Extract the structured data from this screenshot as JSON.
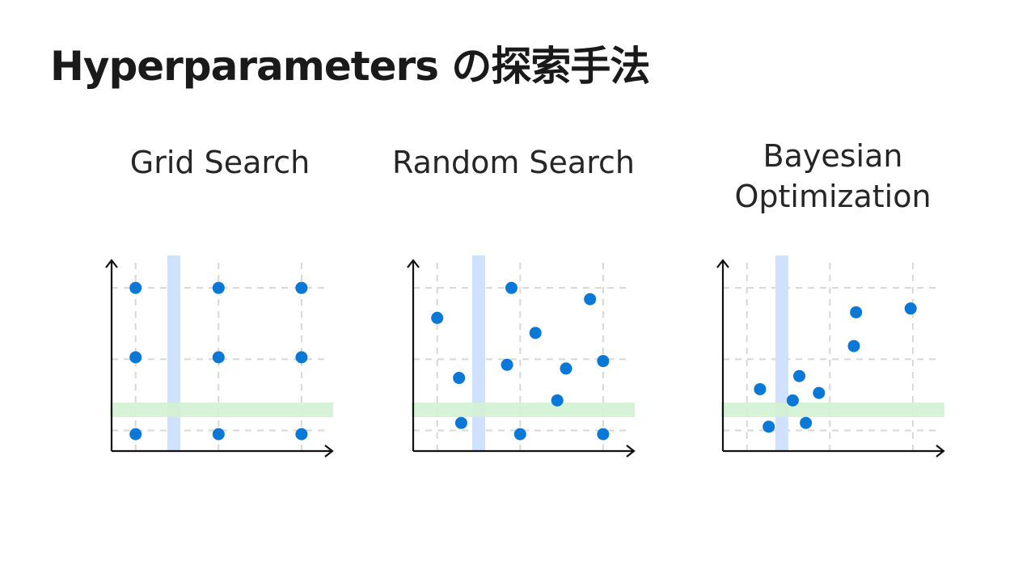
{
  "slide": {
    "title": "Hyperparameters の探索手法"
  },
  "colors": {
    "point": "#0a78d7",
    "vertical_band": "#cfe1fc",
    "horizontal_band": "#d3f2d3",
    "axis": "#111111",
    "grid": "#d7d7d7"
  },
  "panels": [
    {
      "id": "grid",
      "title_lines": [
        "Grid Search"
      ],
      "points": [
        [
          0.11,
          0.87
        ],
        [
          0.49,
          0.87
        ],
        [
          0.87,
          0.87
        ],
        [
          0.11,
          0.5
        ],
        [
          0.49,
          0.5
        ],
        [
          0.87,
          0.5
        ],
        [
          0.11,
          0.09
        ],
        [
          0.49,
          0.09
        ],
        [
          0.87,
          0.09
        ]
      ],
      "vertical_band_x": 0.285,
      "horizontal_band_y": 0.22
    },
    {
      "id": "random",
      "title_lines": [
        "Random Search"
      ],
      "points": [
        [
          0.45,
          0.87
        ],
        [
          0.81,
          0.81
        ],
        [
          0.11,
          0.71
        ],
        [
          0.56,
          0.63
        ],
        [
          0.43,
          0.46
        ],
        [
          0.87,
          0.48
        ],
        [
          0.7,
          0.44
        ],
        [
          0.21,
          0.39
        ],
        [
          0.66,
          0.27
        ],
        [
          0.22,
          0.15
        ],
        [
          0.49,
          0.09
        ],
        [
          0.87,
          0.09
        ]
      ],
      "vertical_band_x": 0.3,
      "horizontal_band_y": 0.22
    },
    {
      "id": "bayes",
      "title_lines": [
        "Bayesian",
        "Optimization"
      ],
      "points": [
        [
          0.86,
          0.76
        ],
        [
          0.61,
          0.74
        ],
        [
          0.6,
          0.56
        ],
        [
          0.35,
          0.4
        ],
        [
          0.17,
          0.33
        ],
        [
          0.44,
          0.31
        ],
        [
          0.32,
          0.27
        ],
        [
          0.21,
          0.13
        ],
        [
          0.38,
          0.15
        ]
      ],
      "vertical_band_x": 0.27,
      "horizontal_band_y": 0.22
    }
  ]
}
